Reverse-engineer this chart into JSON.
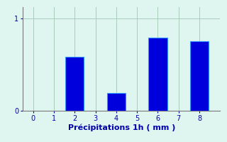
{
  "categories": [
    2,
    4,
    6,
    8
  ],
  "values": [
    0.58,
    0.19,
    0.79,
    0.75
  ],
  "bar_color": "#0000dd",
  "bar_edge_color": "#3399ff",
  "background_color": "#dff5f0",
  "xlabel": "Précipitations 1h ( mm )",
  "xlabel_color": "#0000aa",
  "tick_color": "#0000aa",
  "axis_color": "#777777",
  "ylim": [
    0,
    1.12
  ],
  "xlim": [
    -0.5,
    9.0
  ],
  "yticks": [
    0,
    1
  ],
  "xticks": [
    0,
    1,
    2,
    3,
    4,
    5,
    6,
    7,
    8
  ],
  "grid_color": "#aaccbb",
  "bar_width": 0.9,
  "xlabel_fontsize": 8,
  "tick_fontsize": 7
}
